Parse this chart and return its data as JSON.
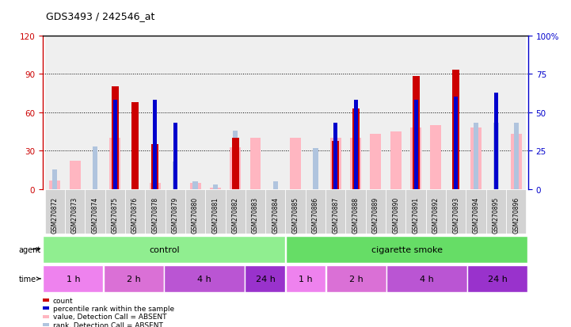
{
  "title": "GDS3493 / 242546_at",
  "samples": [
    "GSM270872",
    "GSM270873",
    "GSM270874",
    "GSM270875",
    "GSM270876",
    "GSM270878",
    "GSM270879",
    "GSM270880",
    "GSM270881",
    "GSM270882",
    "GSM270883",
    "GSM270884",
    "GSM270885",
    "GSM270886",
    "GSM270887",
    "GSM270888",
    "GSM270889",
    "GSM270890",
    "GSM270891",
    "GSM270892",
    "GSM270893",
    "GSM270894",
    "GSM270895",
    "GSM270896"
  ],
  "count": [
    0,
    0,
    0,
    80,
    68,
    35,
    0,
    0,
    0,
    40,
    0,
    0,
    0,
    0,
    38,
    63,
    0,
    0,
    88,
    0,
    93,
    0,
    0,
    0
  ],
  "percentile_rank": [
    0,
    0,
    0,
    58,
    0,
    58,
    43,
    0,
    0,
    0,
    0,
    0,
    0,
    0,
    43,
    58,
    0,
    0,
    58,
    0,
    60,
    0,
    63,
    0
  ],
  "absent_value": [
    7,
    22,
    0,
    40,
    0,
    5,
    0,
    5,
    1,
    33,
    40,
    0,
    40,
    0,
    40,
    40,
    43,
    45,
    48,
    50,
    0,
    48,
    0,
    43
  ],
  "absent_rank": [
    13,
    0,
    28,
    0,
    0,
    0,
    18,
    5,
    3,
    38,
    0,
    5,
    0,
    27,
    0,
    0,
    0,
    0,
    0,
    0,
    0,
    43,
    43,
    43
  ],
  "ylim_left": [
    0,
    120
  ],
  "ylim_right": [
    0,
    100
  ],
  "yticks_left": [
    0,
    30,
    60,
    90,
    120
  ],
  "yticks_right": [
    0,
    25,
    50,
    75,
    100
  ],
  "ytick_labels_left": [
    "0",
    "30",
    "60",
    "90",
    "120"
  ],
  "ytick_labels_right": [
    "0",
    "25",
    "50",
    "75",
    "100%"
  ],
  "agent_groups": [
    {
      "label": "control",
      "start": 0,
      "end": 11,
      "color": "#90EE90"
    },
    {
      "label": "cigarette smoke",
      "start": 12,
      "end": 23,
      "color": "#66DD66"
    }
  ],
  "time_groups": [
    {
      "label": "1 h",
      "start": 0,
      "end": 2,
      "color": "#EE82EE"
    },
    {
      "label": "2 h",
      "start": 3,
      "end": 5,
      "color": "#DA70D6"
    },
    {
      "label": "4 h",
      "start": 6,
      "end": 9,
      "color": "#BA55D3"
    },
    {
      "label": "24 h",
      "start": 10,
      "end": 11,
      "color": "#9932CC"
    },
    {
      "label": "1 h",
      "start": 12,
      "end": 13,
      "color": "#EE82EE"
    },
    {
      "label": "2 h",
      "start": 14,
      "end": 16,
      "color": "#DA70D6"
    },
    {
      "label": "4 h",
      "start": 17,
      "end": 20,
      "color": "#BA55D3"
    },
    {
      "label": "24 h",
      "start": 21,
      "end": 23,
      "color": "#9932CC"
    }
  ],
  "count_color": "#CC0000",
  "percentile_color": "#0000CC",
  "absent_value_color": "#FFB6C1",
  "absent_rank_color": "#B0C4DE",
  "axis_color_left": "#CC0000",
  "axis_color_right": "#0000CC"
}
